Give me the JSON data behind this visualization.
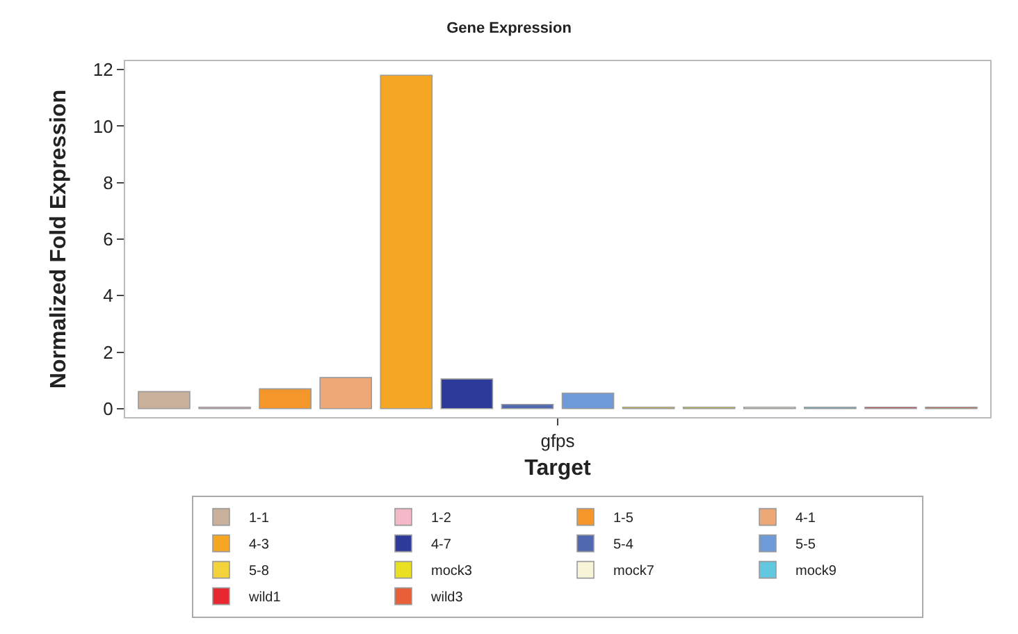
{
  "chart_data": {
    "type": "bar",
    "title": "Gene Expression",
    "xlabel": "Target",
    "ylabel": "Normalized Fold Expression",
    "categories": [
      "gfps"
    ],
    "series": [
      {
        "name": "1-1",
        "color": "#c8b09a",
        "values": [
          0.6
        ]
      },
      {
        "name": "1-2",
        "color": "#f4b8c8",
        "values": [
          0.05
        ]
      },
      {
        "name": "1-5",
        "color": "#f5962a",
        "values": [
          0.7
        ]
      },
      {
        "name": "4-1",
        "color": "#eea878",
        "values": [
          1.1
        ]
      },
      {
        "name": "4-3",
        "color": "#f5a623",
        "values": [
          11.8
        ]
      },
      {
        "name": "4-7",
        "color": "#2e3a9a",
        "values": [
          1.05
        ]
      },
      {
        "name": "5-4",
        "color": "#5068b0",
        "values": [
          0.15
        ]
      },
      {
        "name": "5-5",
        "color": "#6f9ad8",
        "values": [
          0.55
        ]
      },
      {
        "name": "5-8",
        "color": "#f3d23a",
        "values": [
          0.05
        ]
      },
      {
        "name": "mock3",
        "color": "#e8e020",
        "values": [
          0.05
        ]
      },
      {
        "name": "mock7",
        "color": "#f8f4d8",
        "values": [
          0.05
        ]
      },
      {
        "name": "mock9",
        "color": "#62c8e0",
        "values": [
          0.05
        ]
      },
      {
        "name": "wild1",
        "color": "#e82830",
        "values": [
          0.05
        ]
      },
      {
        "name": "wild3",
        "color": "#e8603a",
        "values": [
          0.05
        ]
      }
    ],
    "ylim": [
      -0.3,
      12.3
    ],
    "yticks": [
      0,
      2,
      4,
      6,
      8,
      10,
      12
    ],
    "legend": "bottom"
  }
}
